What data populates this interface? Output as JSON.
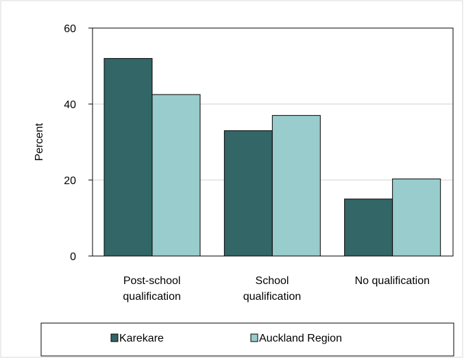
{
  "chart_data": {
    "type": "bar",
    "title": "",
    "xlabel": "",
    "ylabel": "Percent",
    "ylim": [
      0,
      60
    ],
    "yticks": [
      0,
      20,
      40,
      60
    ],
    "grid": true,
    "legend_placement": "bottom",
    "categories": [
      [
        "Post-school",
        "qualification"
      ],
      [
        "School",
        "qualification"
      ],
      [
        "No qualification"
      ]
    ],
    "series": [
      {
        "name": "Karekare",
        "values": [
          52,
          33,
          15
        ],
        "color": "#336666"
      },
      {
        "name": "Auckland Region",
        "values": [
          42.5,
          37,
          20.3
        ],
        "color": "#99cccc"
      }
    ]
  }
}
